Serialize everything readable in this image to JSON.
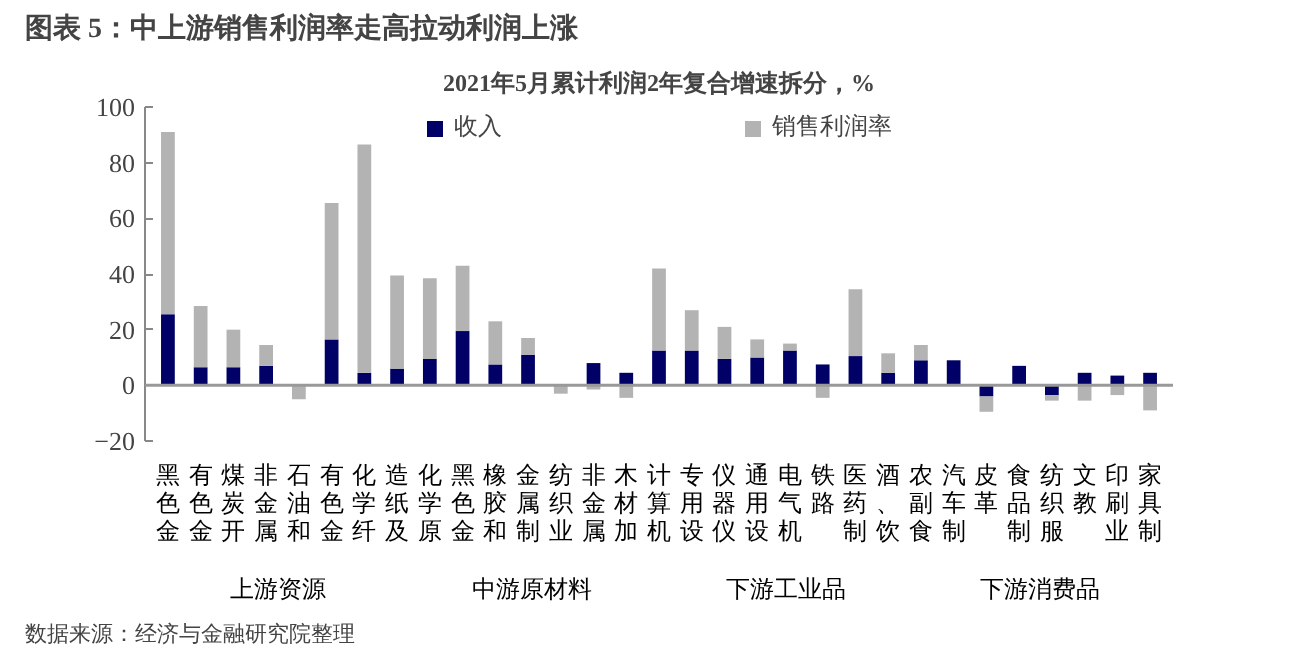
{
  "chart_data": {
    "type": "bar",
    "title": "图表 5：中上游销售利润率走高拉动利润上涨",
    "subtitle": "2021年5月累计利润2年复合增速拆分，%",
    "categories": [
      "黑色金",
      "有色金",
      "煤炭开",
      "非金属",
      "石油和",
      "有色金",
      "化学纤",
      "造纸及",
      "化学原",
      "黑色金",
      "橡胶和",
      "金属制",
      "纺织业",
      "非金属",
      "木材加",
      "计算机",
      "专用设",
      "仪器仪",
      "通用设",
      "电气机",
      "铁路",
      "医药制",
      "酒、饮",
      "农副食",
      "汽车制",
      "皮革",
      "食品制",
      "纺织服",
      "文教",
      "印刷业",
      "家具制"
    ],
    "series": [
      {
        "name": "收入",
        "color": "#000066",
        "values": [
          25.5,
          6.5,
          6.5,
          7,
          0,
          16.5,
          4.5,
          6,
          9.5,
          19.5,
          7.5,
          11,
          0,
          8,
          4.5,
          12.5,
          12.5,
          9.5,
          10,
          12.5,
          7.5,
          10.5,
          4.5,
          9,
          9,
          -4,
          7,
          -3.5,
          4.5,
          3.5,
          4.5
        ]
      },
      {
        "name": "销售利润率",
        "color": "#b3b3b3",
        "values": [
          65.5,
          22,
          13.5,
          7.5,
          -5,
          49,
          82,
          33.5,
          29,
          23.5,
          15.5,
          6,
          -3,
          -1.5,
          -4.5,
          29.5,
          14.5,
          11.5,
          6.5,
          2.5,
          -4.5,
          24,
          7,
          5.5,
          0,
          -5.5,
          0,
          -2,
          -5.5,
          -3.5,
          -9
        ]
      }
    ],
    "stacked": true,
    "ylim": [
      -20,
      100
    ],
    "yticks": [
      -20,
      0,
      20,
      40,
      60,
      80,
      100
    ],
    "grid": false,
    "legend": "top",
    "ref_lines": [
      {
        "axis": "y",
        "value": 0,
        "color": "#999999"
      }
    ],
    "annotations": [
      "上游资源",
      "中游原材料",
      "下游工业品",
      "下游消费品",
      "数据来源：经济与金融研究院整理"
    ]
  }
}
